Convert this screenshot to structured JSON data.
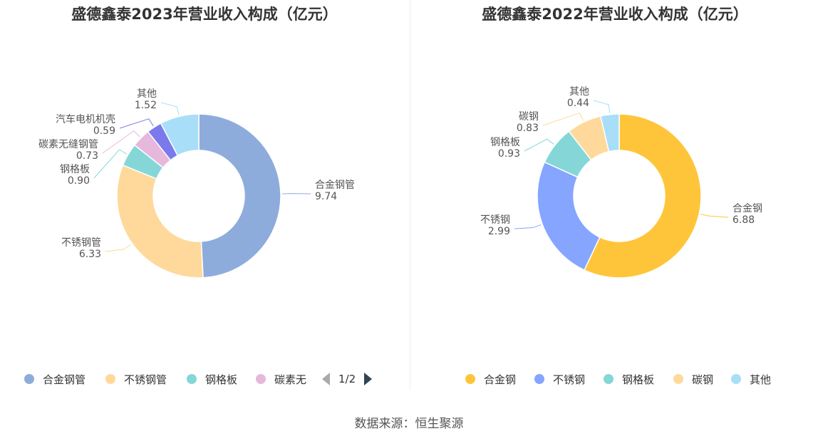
{
  "source": "数据来源：恒生聚源",
  "charts": [
    {
      "title": "盛德鑫泰2023年营业收入构成（亿元）",
      "pager": "1/2",
      "legend": [
        "合金钢管",
        "不锈钢管",
        "钢格板",
        "碳素无"
      ]
    },
    {
      "title": "盛德鑫泰2022年营业收入构成（亿元）",
      "legend": [
        "合金钢",
        "不锈钢",
        "钢格板",
        "碳钢",
        "其他"
      ]
    }
  ],
  "chart_data": [
    {
      "type": "pie",
      "title": "盛德鑫泰2023年营业收入构成（亿元）",
      "labels": [
        "合金钢管",
        "不锈钢管",
        "钢格板",
        "碳素无缝钢管",
        "汽车电机机壳",
        "其他"
      ],
      "values": [
        9.74,
        6.33,
        0.9,
        0.73,
        0.59,
        1.52
      ],
      "value_labels": [
        "9.74",
        "6.33",
        "0.90",
        "0.73",
        "0.59",
        "1.52"
      ],
      "colors": [
        "#8eacdb",
        "#ffd99b",
        "#85d7d7",
        "#e6b8dc",
        "#7a7aec",
        "#a8def8"
      ],
      "legend_position": "bottom"
    },
    {
      "type": "pie",
      "title": "盛德鑫泰2022年营业收入构成（亿元）",
      "labels": [
        "合金钢",
        "不锈钢",
        "钢格板",
        "碳钢",
        "其他"
      ],
      "values": [
        6.88,
        2.99,
        0.93,
        0.83,
        0.44
      ],
      "value_labels": [
        "6.88",
        "2.99",
        "0.93",
        "0.83",
        "0.44"
      ],
      "colors": [
        "#ffc53a",
        "#85a5ff",
        "#85d7d7",
        "#ffd99b",
        "#a8def8"
      ],
      "legend_position": "bottom"
    }
  ]
}
